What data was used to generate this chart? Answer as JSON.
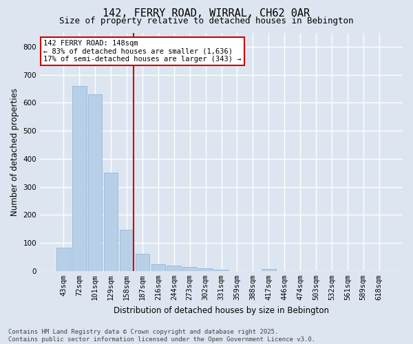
{
  "title": "142, FERRY ROAD, WIRRAL, CH62 0AR",
  "subtitle": "Size of property relative to detached houses in Bebington",
  "xlabel": "Distribution of detached houses by size in Bebington",
  "ylabel": "Number of detached properties",
  "categories": [
    "43sqm",
    "72sqm",
    "101sqm",
    "129sqm",
    "158sqm",
    "187sqm",
    "216sqm",
    "244sqm",
    "273sqm",
    "302sqm",
    "331sqm",
    "359sqm",
    "388sqm",
    "417sqm",
    "446sqm",
    "474sqm",
    "503sqm",
    "532sqm",
    "561sqm",
    "589sqm",
    "618sqm"
  ],
  "values": [
    83,
    660,
    630,
    350,
    148,
    60,
    25,
    18,
    14,
    10,
    5,
    0,
    0,
    8,
    0,
    0,
    0,
    0,
    0,
    0,
    0
  ],
  "bar_color": "#b8cfe8",
  "bar_edge_color": "#8aafd4",
  "background_color": "#dde6f0",
  "grid_color": "#ffffff",
  "red_line_x": 4.43,
  "annotation_text": "142 FERRY ROAD: 148sqm\n← 83% of detached houses are smaller (1,636)\n17% of semi-detached houses are larger (343) →",
  "annotation_box_facecolor": "#ffffff",
  "annotation_box_edgecolor": "#cc0000",
  "footer_line1": "Contains HM Land Registry data © Crown copyright and database right 2025.",
  "footer_line2": "Contains public sector information licensed under the Open Government Licence v3.0.",
  "ylim": [
    0,
    850
  ],
  "yticks": [
    0,
    100,
    200,
    300,
    400,
    500,
    600,
    700,
    800
  ],
  "title_fontsize": 11,
  "subtitle_fontsize": 9,
  "axis_label_fontsize": 8.5,
  "tick_fontsize": 7.5,
  "annotation_fontsize": 7.5,
  "footer_fontsize": 6.5
}
